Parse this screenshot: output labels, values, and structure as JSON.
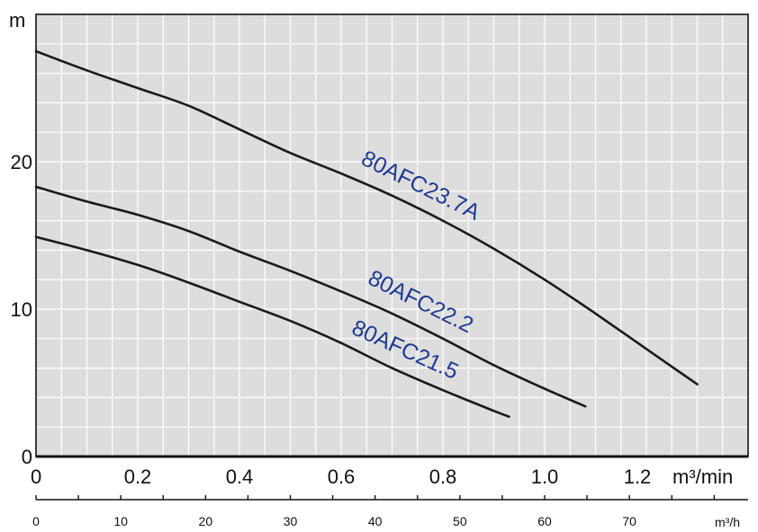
{
  "chart_data": {
    "type": "line",
    "title": "",
    "xlabel": "m³/min",
    "ylabel": "m",
    "xlim": [
      0,
      1.4
    ],
    "ylim": [
      0,
      30
    ],
    "x_ticks": [
      0,
      0.2,
      0.4,
      0.6,
      0.8,
      1.0,
      1.2
    ],
    "x_tick_labels": [
      "0",
      "0.2",
      "0.4",
      "0.6",
      "0.8",
      "1.0",
      "1.2"
    ],
    "y_ticks": [
      0,
      10,
      20
    ],
    "y_tick_labels": [
      "0",
      "10",
      "20"
    ],
    "grid": true,
    "secondary_x_axis": {
      "label": "m³/h",
      "ticks": [
        0,
        10,
        20,
        30,
        40,
        50,
        60,
        70
      ],
      "tick_labels": [
        "0",
        "10",
        "20",
        "30",
        "40",
        "50",
        "60",
        "70"
      ],
      "xlim": [
        0,
        84
      ]
    },
    "series": [
      {
        "name": "80AFC23.7A",
        "x": [
          0,
          0.1,
          0.2,
          0.3,
          0.4,
          0.5,
          0.6,
          0.7,
          0.8,
          0.9,
          1.0,
          1.1,
          1.2,
          1.3
        ],
        "y": [
          27.5,
          26.2,
          25.0,
          23.8,
          22.2,
          20.6,
          19.2,
          17.7,
          16.0,
          14.1,
          12.0,
          9.7,
          7.3,
          4.9
        ]
      },
      {
        "name": "80AFC22.2",
        "x": [
          0,
          0.1,
          0.2,
          0.3,
          0.4,
          0.5,
          0.6,
          0.7,
          0.8,
          0.9,
          1.0,
          1.08
        ],
        "y": [
          18.3,
          17.3,
          16.4,
          15.3,
          13.9,
          12.6,
          11.2,
          9.7,
          8.0,
          6.2,
          4.6,
          3.4
        ]
      },
      {
        "name": "80AFC21.5",
        "x": [
          0,
          0.1,
          0.2,
          0.3,
          0.4,
          0.5,
          0.6,
          0.7,
          0.8,
          0.9,
          0.93
        ],
        "y": [
          14.9,
          14.0,
          13.0,
          11.8,
          10.5,
          9.2,
          7.7,
          6.0,
          4.5,
          3.1,
          2.7
        ]
      }
    ]
  }
}
